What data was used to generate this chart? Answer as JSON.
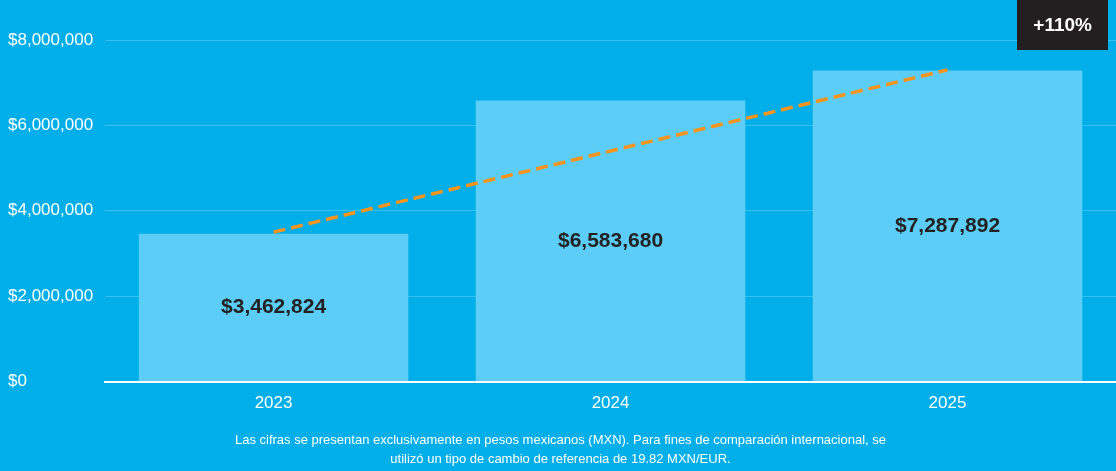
{
  "chart_data": {
    "type": "bar",
    "categories": [
      "2023",
      "2024",
      "2025"
    ],
    "series": [
      {
        "color": "#5bcdf6",
        "values": [
          3462824,
          6583680,
          7287892
        ],
        "value_labels": [
          "$3,462,824",
          "$6,583,680",
          "$7,287,892"
        ]
      },
      {
        "type": "line",
        "values": [
          3500000,
          5400000,
          7300000
        ],
        "color": "#f7941d",
        "line_style": "dashed",
        "marker": "none"
      }
    ],
    "ylim": [
      0,
      8000000
    ],
    "yticks": [
      {
        "value": 0,
        "label": "$0"
      },
      {
        "value": 2000000,
        "label": "$2,000,000"
      },
      {
        "value": 4000000,
        "label": "$4,000,000"
      },
      {
        "value": 6000000,
        "label": "$6,000,000"
      },
      {
        "value": 8000000,
        "label": "$8,000,000"
      }
    ],
    "grid": "y",
    "legend": false,
    "annotations": [
      "+110%",
      "Las cifras se presentan exclusivamente en pesos mexicanos (MXN). Para fines de comparación internacional, se utilizó un tipo de cambio de referencia de 19.82 MXN/EUR."
    ]
  }
}
